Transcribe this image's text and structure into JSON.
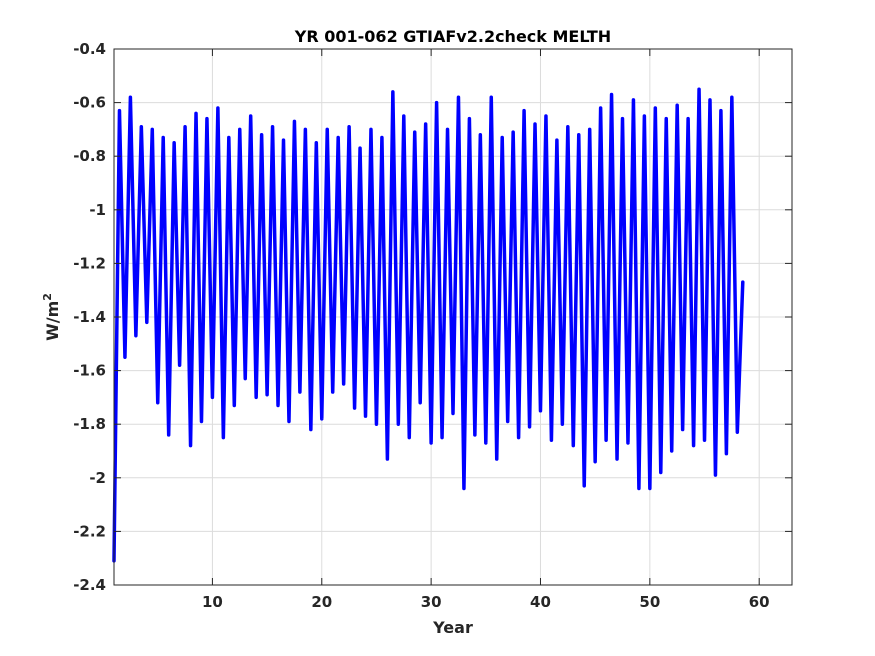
{
  "chart_data": {
    "type": "line",
    "title": "YR 001-062 GTIAFv2.2check MELTH",
    "xlabel": "Year",
    "ylabel_base": "W/m",
    "ylabel_sup": "2",
    "xlim": [
      1,
      63
    ],
    "ylim": [
      -2.4,
      -0.4
    ],
    "xticks": [
      10,
      20,
      30,
      40,
      50,
      60
    ],
    "yticks": [
      -2.4,
      -2.2,
      -2,
      -1.8,
      -1.6,
      -1.4,
      -1.2,
      -1,
      -0.8,
      -0.6,
      -0.4
    ],
    "ytick_labels": [
      "-2.4",
      "-2.2",
      "-2",
      "-1.8",
      "-1.6",
      "-1.4",
      "-1.2",
      "-1",
      "-0.8",
      "-0.6",
      "-0.4"
    ],
    "grid": true,
    "line_color": "#0000ff",
    "series": [
      {
        "points_per_year": 2,
        "x_start": 1.0,
        "values": [
          -2.31,
          -0.63,
          -1.55,
          -0.58,
          -1.47,
          -0.69,
          -1.42,
          -0.7,
          -1.72,
          -0.73,
          -1.84,
          -0.75,
          -1.58,
          -0.69,
          -1.88,
          -0.64,
          -1.79,
          -0.66,
          -1.7,
          -0.62,
          -1.85,
          -0.73,
          -1.73,
          -0.7,
          -1.63,
          -0.65,
          -1.7,
          -0.72,
          -1.69,
          -0.69,
          -1.73,
          -0.74,
          -1.79,
          -0.67,
          -1.68,
          -0.7,
          -1.82,
          -0.75,
          -1.78,
          -0.7,
          -1.68,
          -0.73,
          -1.65,
          -0.69,
          -1.74,
          -0.77,
          -1.77,
          -0.7,
          -1.8,
          -0.73,
          -1.93,
          -0.56,
          -1.8,
          -0.65,
          -1.85,
          -0.71,
          -1.72,
          -0.68,
          -1.87,
          -0.6,
          -1.85,
          -0.7,
          -1.76,
          -0.58,
          -2.04,
          -0.66,
          -1.84,
          -0.72,
          -1.87,
          -0.58,
          -1.93,
          -0.73,
          -1.79,
          -0.71,
          -1.85,
          -0.63,
          -1.81,
          -0.68,
          -1.75,
          -0.65,
          -1.86,
          -0.74,
          -1.8,
          -0.69,
          -1.88,
          -0.72,
          -2.03,
          -0.7,
          -1.94,
          -0.62,
          -1.86,
          -0.57,
          -1.93,
          -0.66,
          -1.87,
          -0.59,
          -2.04,
          -0.65,
          -2.04,
          -0.62,
          -1.98,
          -0.66,
          -1.9,
          -0.61,
          -1.82,
          -0.66,
          -1.88,
          -0.55,
          -1.86,
          -0.59,
          -1.99,
          -0.63,
          -1.91,
          -0.58,
          -1.83,
          -1.27
        ]
      }
    ]
  }
}
